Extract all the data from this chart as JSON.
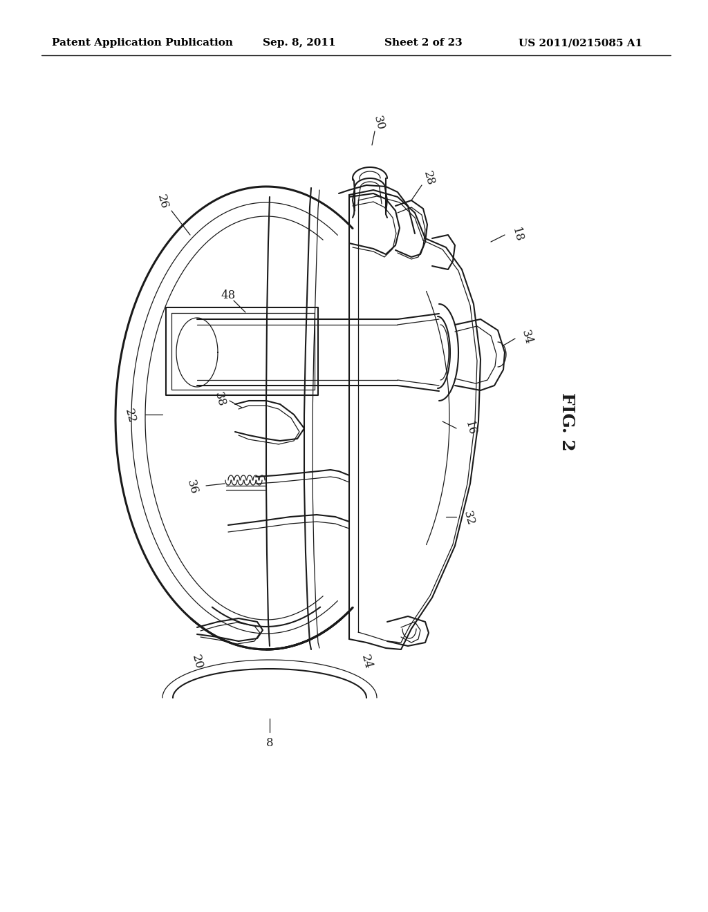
{
  "bg_color": "#ffffff",
  "line_color": "#1a1a1a",
  "figsize": [
    10.24,
    13.2
  ],
  "dpi": 100,
  "header_text": "Patent Application Publication",
  "header_date": "Sep. 8, 2011",
  "header_sheet": "Sheet 2 of 23",
  "header_patent": "US 2011/0215085 A1",
  "fig_label": "FIG. 2"
}
